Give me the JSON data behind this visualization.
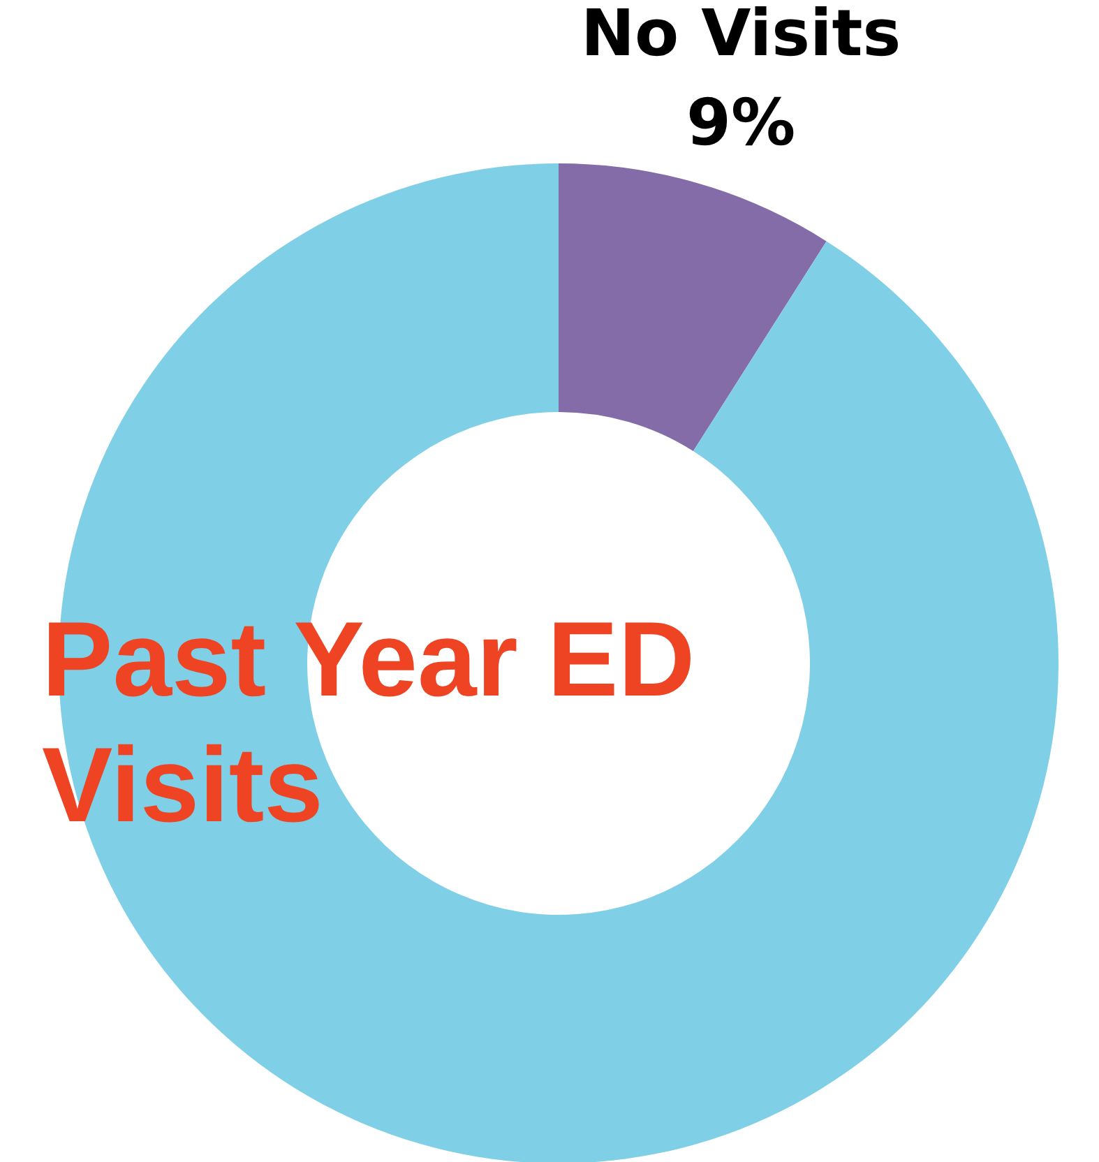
{
  "chart_data": {
    "type": "donut",
    "title": "Past Year ED Visits",
    "categories": [
      "No Visits",
      null
    ],
    "values": [
      9,
      91
    ],
    "colors": [
      "#836ca8",
      "#7fcfe6"
    ],
    "value_labels": [
      "9%",
      null
    ]
  }
}
